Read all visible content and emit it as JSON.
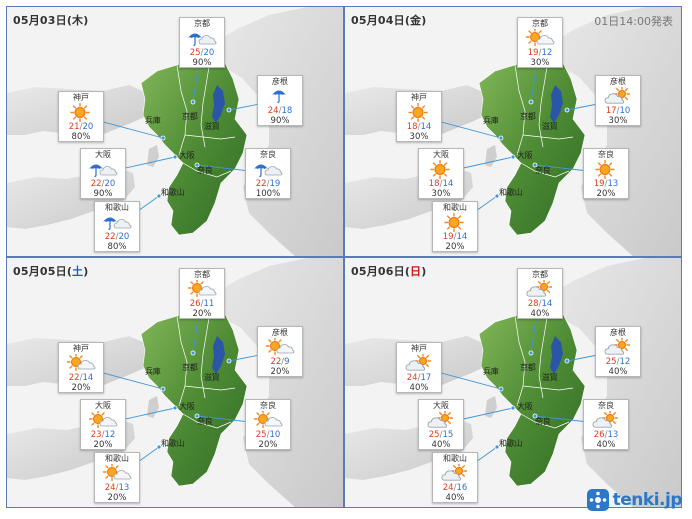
{
  "issued": "01日14:00発表",
  "prefectures": [
    "京都",
    "兵庫",
    "滋賀",
    "大阪",
    "奈良",
    "和歌山"
  ],
  "cities_order": [
    "kyoto",
    "hikone",
    "kobe",
    "osaka",
    "nara",
    "wakayama"
  ],
  "panels": [
    {
      "date_prefix": "05月03日(",
      "weekday": "木",
      "weekday_kind": "weekday",
      "date_suffix": ")",
      "cards": [
        {
          "city": "京都",
          "icon": "rain-cloud",
          "hi": "25",
          "lo": "20",
          "pop": "90%"
        },
        {
          "city": "彦根",
          "icon": "rain",
          "hi": "24",
          "lo": "18",
          "pop": "90%"
        },
        {
          "city": "神戸",
          "icon": "sun",
          "hi": "21",
          "lo": "20",
          "pop": "80%"
        },
        {
          "city": "大阪",
          "icon": "rain-cloud",
          "hi": "22",
          "lo": "20",
          "pop": "90%"
        },
        {
          "city": "奈良",
          "icon": "rain-cloud",
          "hi": "22",
          "lo": "19",
          "pop": "100%"
        },
        {
          "city": "和歌山",
          "icon": "rain-cloud",
          "hi": "22",
          "lo": "20",
          "pop": "80%"
        }
      ]
    },
    {
      "date_prefix": "05月04日(",
      "weekday": "金",
      "weekday_kind": "weekday",
      "date_suffix": ")",
      "cards": [
        {
          "city": "京都",
          "icon": "sun-cloud",
          "hi": "19",
          "lo": "12",
          "pop": "30%"
        },
        {
          "city": "彦根",
          "icon": "cloud-sun",
          "hi": "17",
          "lo": "10",
          "pop": "30%"
        },
        {
          "city": "神戸",
          "icon": "sun",
          "hi": "18",
          "lo": "14",
          "pop": "30%"
        },
        {
          "city": "大阪",
          "icon": "sun",
          "hi": "18",
          "lo": "14",
          "pop": "30%"
        },
        {
          "city": "奈良",
          "icon": "sun",
          "hi": "19",
          "lo": "13",
          "pop": "20%"
        },
        {
          "city": "和歌山",
          "icon": "sun",
          "hi": "19",
          "lo": "14",
          "pop": "20%"
        }
      ]
    },
    {
      "date_prefix": "05月05日(",
      "weekday": "土",
      "weekday_kind": "sat",
      "date_suffix": ")",
      "cards": [
        {
          "city": "京都",
          "icon": "sun-cloud",
          "hi": "26",
          "lo": "11",
          "pop": "20%"
        },
        {
          "city": "彦根",
          "icon": "sun-cloud",
          "hi": "22",
          "lo": "9",
          "pop": "20%"
        },
        {
          "city": "神戸",
          "icon": "sun-cloud",
          "hi": "22",
          "lo": "14",
          "pop": "20%"
        },
        {
          "city": "大阪",
          "icon": "sun-cloud",
          "hi": "23",
          "lo": "12",
          "pop": "20%"
        },
        {
          "city": "奈良",
          "icon": "sun-cloud",
          "hi": "25",
          "lo": "10",
          "pop": "20%"
        },
        {
          "city": "和歌山",
          "icon": "sun-cloud",
          "hi": "24",
          "lo": "13",
          "pop": "20%"
        }
      ]
    },
    {
      "date_prefix": "05月06日(",
      "weekday": "日",
      "weekday_kind": "sun",
      "date_suffix": ")",
      "cards": [
        {
          "city": "京都",
          "icon": "cloud-sun",
          "hi": "28",
          "lo": "14",
          "pop": "40%"
        },
        {
          "city": "彦根",
          "icon": "cloud-sun",
          "hi": "25",
          "lo": "12",
          "pop": "40%"
        },
        {
          "city": "神戸",
          "icon": "cloud-sun",
          "hi": "24",
          "lo": "17",
          "pop": "40%"
        },
        {
          "city": "大阪",
          "icon": "cloud-sun",
          "hi": "25",
          "lo": "15",
          "pop": "40%"
        },
        {
          "city": "奈良",
          "icon": "cloud-sun",
          "hi": "26",
          "lo": "13",
          "pop": "40%"
        },
        {
          "city": "和歌山",
          "icon": "cloud-sun",
          "hi": "24",
          "lo": "16",
          "pop": "40%"
        }
      ]
    }
  ],
  "brand": {
    "name": "tenki.jp",
    "color": "#2a78c7"
  },
  "colors": {
    "high": "#e03a1e",
    "low": "#2f6fd6",
    "land": "#5f9b3c",
    "sea": "#f2f2f2"
  }
}
